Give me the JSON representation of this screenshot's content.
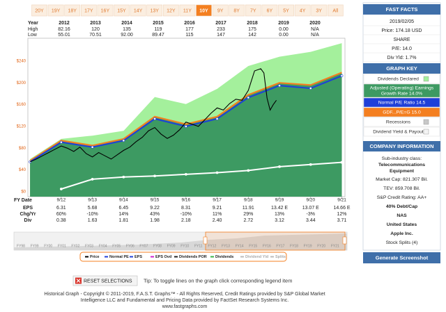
{
  "range_buttons": {
    "labels": [
      "20Y",
      "19Y",
      "18Y",
      "17Y",
      "16Y",
      "15Y",
      "14Y",
      "13Y",
      "12Y",
      "11Y",
      "10Y",
      "9Y",
      "8Y",
      "7Y",
      "6Y",
      "5Y",
      "4Y",
      "3Y",
      "All"
    ],
    "selected": "10Y"
  },
  "price_table": {
    "header": [
      "Year",
      "2012",
      "2013",
      "2014",
      "2015",
      "2016",
      "2017",
      "2018",
      "2019",
      "2020"
    ],
    "rows": [
      [
        "High",
        "82.16",
        "120",
        "135",
        "119",
        "177",
        "233",
        "175",
        "0.00",
        "N/A"
      ],
      [
        "Low",
        "55.01",
        "70.51",
        "92.00",
        "89.47",
        "115",
        "147",
        "142",
        "0.00",
        "N/A"
      ]
    ]
  },
  "chart_data": {
    "type": "line",
    "x_label": "FY Date",
    "xlim": [
      2010.93,
      2021.1
    ],
    "xticks": [
      {
        "value": 2012,
        "label": "9/12"
      },
      {
        "value": 2013,
        "label": "9/13"
      },
      {
        "value": 2014,
        "label": "9/14"
      },
      {
        "value": 2015,
        "label": "9/15"
      },
      {
        "value": 2016,
        "label": "9/16"
      },
      {
        "value": 2017,
        "label": "9/17"
      },
      {
        "value": 2018,
        "label": "9/18"
      },
      {
        "value": 2019,
        "label": "9/19"
      },
      {
        "value": 2020,
        "label": "9/20"
      },
      {
        "value": 2021,
        "label": "9/21"
      }
    ],
    "ylim": [
      -9,
      282
    ],
    "yticks": [
      {
        "value": 0,
        "label": "$0"
      },
      {
        "value": 40,
        "label": "$40"
      },
      {
        "value": 80,
        "label": "$80"
      },
      {
        "value": 120,
        "label": "$120"
      },
      {
        "value": 160,
        "label": "$160"
      },
      {
        "value": 200,
        "label": "$200"
      },
      {
        "value": 240,
        "label": "$240"
      }
    ],
    "tick_color": "#e06010",
    "series": [
      {
        "kind": "area",
        "color": "#a4f09c",
        "x": [
          2011,
          2012,
          2013,
          2014,
          2015,
          2016,
          2017,
          2018,
          2019,
          2020,
          2021
        ],
        "values": [
          60,
          97,
          103,
          112,
          174,
          161,
          189,
          231,
          248,
          257,
          273
        ]
      },
      {
        "kind": "line_area",
        "color": "#f47f20",
        "area_color": "#3d9a62",
        "x": [
          2011,
          2012,
          2013,
          2014,
          2015,
          2016,
          2017,
          2018,
          2019,
          2020,
          2021
        ],
        "values": [
          57,
          94,
          85,
          97,
          138,
          124,
          138,
          178,
          200,
          196,
          219
        ]
      },
      {
        "kind": "line_dots",
        "color": "#1f3fd8",
        "x": [
          2011,
          2012,
          2013,
          2014,
          2015,
          2016,
          2017,
          2018,
          2019,
          2020,
          2021
        ],
        "values": [
          55,
          91,
          82,
          94,
          134,
          120,
          134,
          173,
          195,
          190,
          213
        ]
      },
      {
        "kind": "line_dots",
        "color": "#ffffff",
        "x": [
          2012,
          2013,
          2014,
          2015,
          2016,
          2017,
          2018,
          2019,
          2020,
          2021
        ],
        "values": [
          5,
          23,
          27,
          29,
          32,
          35,
          39,
          46,
          50,
          54
        ]
      },
      {
        "kind": "line",
        "color": "#000000",
        "x": [
          2011.0,
          2011.2,
          2011.4,
          2011.6,
          2011.8,
          2012.0,
          2012.2,
          2012.4,
          2012.6,
          2012.8,
          2013.0,
          2013.2,
          2013.4,
          2013.6,
          2013.8,
          2014.0,
          2014.2,
          2014.4,
          2014.6,
          2014.8,
          2015.0,
          2015.2,
          2015.4,
          2015.6,
          2015.8,
          2016.0,
          2016.2,
          2016.4,
          2016.6,
          2016.8,
          2017.0,
          2017.2,
          2017.4,
          2017.6,
          2017.8,
          2018.0,
          2018.2,
          2018.4,
          2018.5,
          2018.6,
          2018.7,
          2018.8,
          2018.9
        ],
        "values": [
          55,
          60,
          66,
          72,
          78,
          84,
          80,
          74,
          82,
          70,
          64,
          72,
          66,
          60,
          68,
          76,
          82,
          92,
          100,
          112,
          118,
          106,
          98,
          104,
          114,
          128,
          124,
          120,
          132,
          144,
          154,
          150,
          162,
          170,
          168,
          186,
          222,
          226,
          218,
          172,
          150,
          160,
          168
        ]
      }
    ],
    "legend": [
      {
        "label": "Price",
        "color": "#000000"
      },
      {
        "label": "Normal PE",
        "color": "#1f3fd8"
      },
      {
        "label": "EPS",
        "color": "#1f3fd8"
      },
      {
        "label": "EPS Ovd",
        "color": "#d020d0"
      },
      {
        "label": "Dividends POR",
        "color": "#222222"
      },
      {
        "label": "Dividends",
        "color": "#3ab44a"
      },
      {
        "label": "Dividend Yld",
        "color": "#bbbbbb"
      },
      {
        "label": "Splits",
        "color": "#bbbbbb"
      }
    ]
  },
  "data_table": {
    "rows": [
      [
        "EPS",
        "6.31",
        "5.68",
        "6.45",
        "9.22",
        "8.31",
        "9.21",
        "11.91",
        "13.42 E",
        "13.07 E",
        "14.66 E"
      ],
      [
        "Chg/Yr",
        "60%",
        "-10%",
        "14%",
        "43%",
        "-10%",
        "11%",
        "29%",
        "13%",
        "-3%",
        "12%"
      ],
      [
        "Div",
        "0.38",
        "1.63",
        "1.81",
        "1.98",
        "2.18",
        "2.40",
        "2.72",
        "3.12",
        "3.44",
        "3.71"
      ]
    ]
  },
  "navigator": {
    "labels": [
      "FY98",
      "FY99",
      "FY00",
      "FY01",
      "FY02",
      "FY03",
      "FY04",
      "FY05",
      "FY06",
      "FY07",
      "FY08",
      "FY09",
      "FY10",
      "FY11",
      "FY12",
      "FY13",
      "FY14",
      "FY15",
      "FY16",
      "FY17",
      "FY18",
      "FY19",
      "FY20",
      "FY21"
    ]
  },
  "controls": {
    "reset": "RESET SELECTIONS",
    "tip": "Tip: To toggle lines on the graph click corresponding legend item"
  },
  "footer": {
    "lines": [
      "Historical Graph - Copyright © 2011-2019, F.A.S.T. Graphs™ - All Rights Reserved, Credit Ratings provided by S&P Global Market",
      "Intelligence LLC and Fundamental and Pricing Data provided by FactSet Research Systems Inc.",
      "www.fastgraphs.com"
    ]
  },
  "fast_facts": {
    "title": "FAST FACTS",
    "lines": [
      "2019/02/05",
      "Price: 174.18 USD",
      "SHARE",
      "P/E: 14.0",
      "Div Yld: 1.7%"
    ]
  },
  "graph_key": {
    "title": "GRAPH KEY",
    "items": [
      {
        "lines": [
          "Dividends Declared"
        ],
        "bg": "#ffffff",
        "fg": "#333333",
        "swatch": "#a4f09c"
      },
      {
        "lines": [
          "Adjusted (Operating) Earnings",
          "Growth Rate 14.0%"
        ],
        "bg": "#3d9a62",
        "fg": "#ffffff"
      },
      {
        "lines": [
          "Normal P/E Ratio 14.5"
        ],
        "bg": "#1f3fd8",
        "fg": "#ffffff"
      },
      {
        "lines": [
          "GDF...P/E=G 15.0"
        ],
        "bg": "#f47f20",
        "fg": "#ffffff"
      },
      {
        "lines": [
          "Recessions"
        ],
        "bg": "#ffffff",
        "fg": "#333333",
        "swatch": "#c8c8c8"
      },
      {
        "lines": [
          "Dividend Yield & Payout"
        ],
        "bg": "#ffffff",
        "fg": "#333333",
        "swatch": "#f4f4f4"
      }
    ]
  },
  "company_info": {
    "title": "COMPANY INFORMATION",
    "lines": [
      "Sub-industry class:",
      "Telecommunications",
      "Equipment",
      "Market Cap: 821.307 Bil.",
      "TEV: 859.708 Bil.",
      "S&P Credit Rating: AA+",
      "40% Debt/Cap",
      "NAS",
      "United States",
      "Apple Inc.",
      "Stock Splits (4)"
    ]
  },
  "screenshot_button": "Generate Screenshot"
}
